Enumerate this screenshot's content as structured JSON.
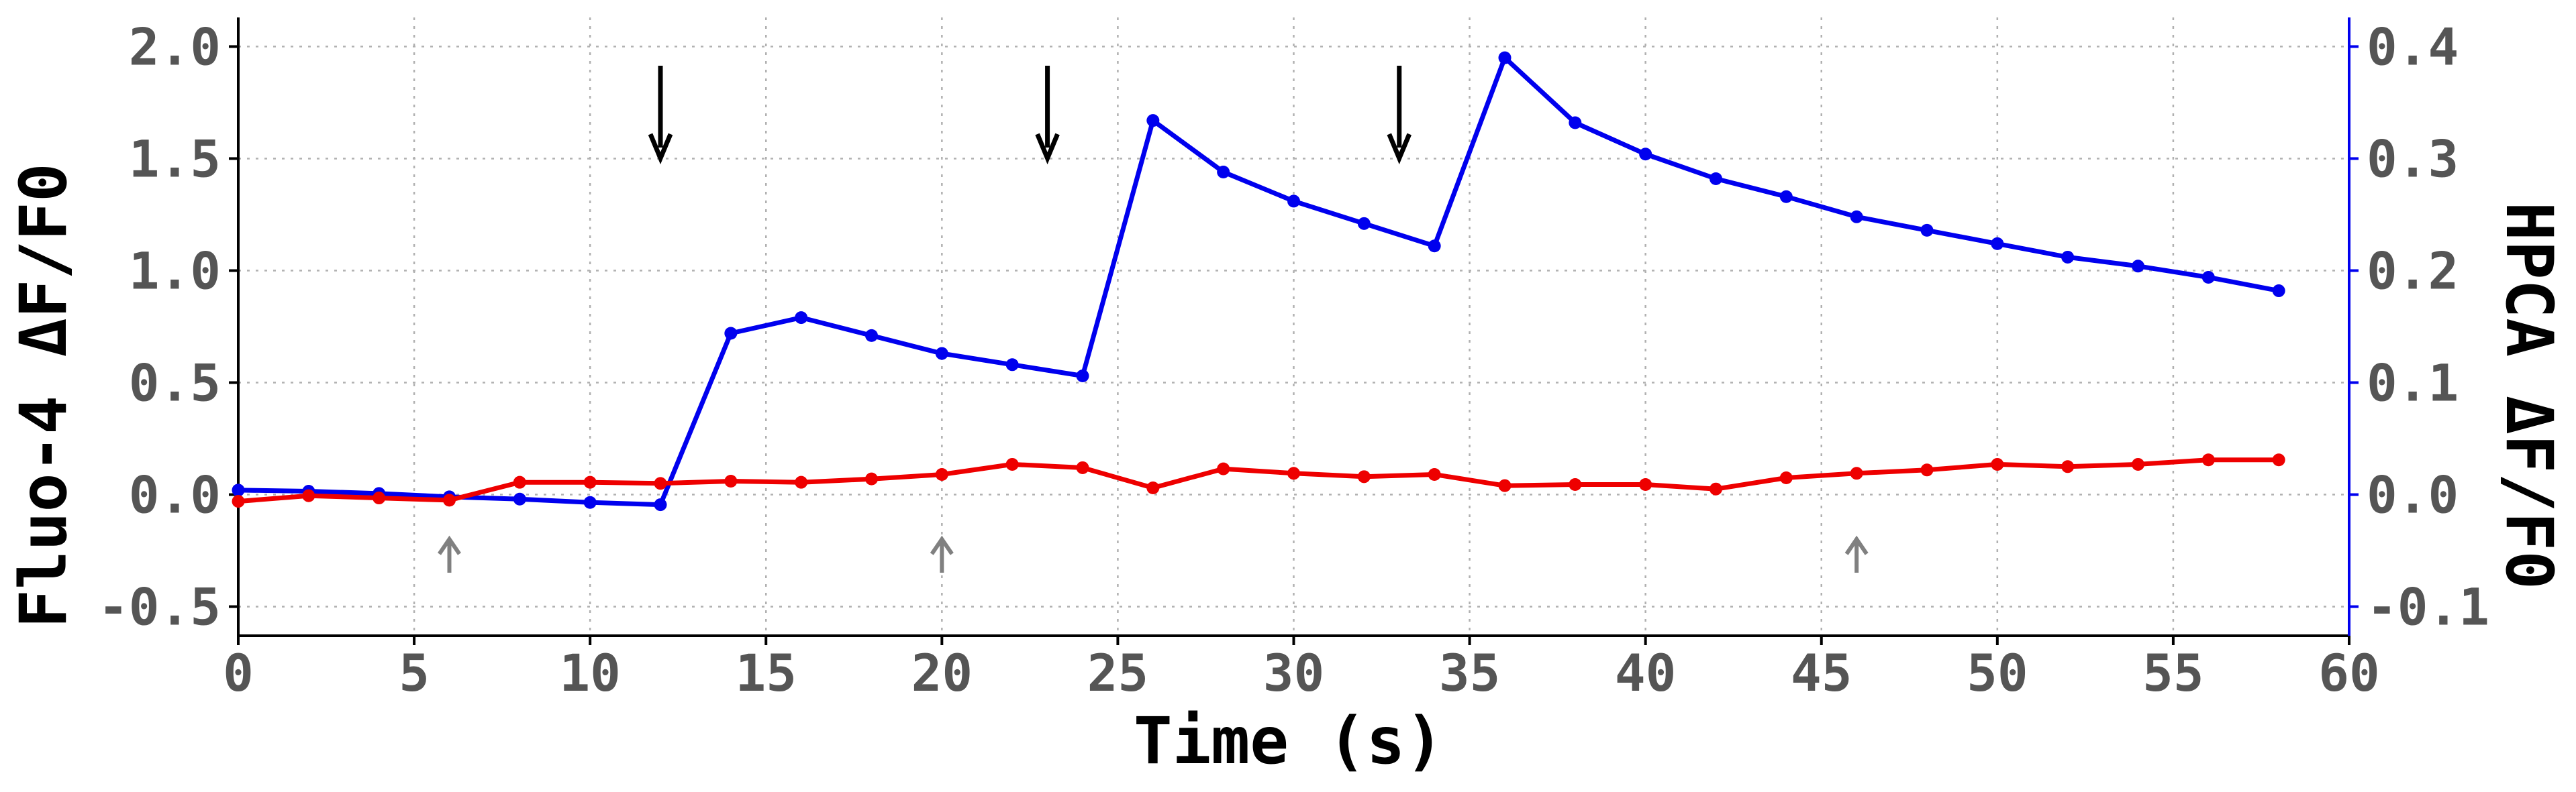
{
  "chart_data": {
    "type": "line",
    "title": "",
    "xlabel": "Time (s)",
    "ylabel_left": "Fluo-4 ΔF/F0",
    "ylabel_right": "HPCA ΔF/F0",
    "xlim": [
      0,
      60
    ],
    "ylim_left": [
      -0.63,
      2.13
    ],
    "ylim_right": [
      -0.126,
      0.426
    ],
    "x_ticks": [
      0,
      5,
      10,
      15,
      20,
      25,
      30,
      35,
      40,
      45,
      50,
      55,
      60
    ],
    "x_tick_labels": [
      "0",
      "5",
      "10",
      "15",
      "20",
      "25",
      "30",
      "35",
      "40",
      "45",
      "50",
      "55",
      "60"
    ],
    "y_left_ticks": [
      -0.5,
      0.0,
      0.5,
      1.0,
      1.5,
      2.0
    ],
    "y_left_tick_labels": [
      "-0.5",
      "0.0",
      "0.5",
      "1.0",
      "1.5",
      "2.0"
    ],
    "y_right_ticks": [
      -0.1,
      0.0,
      0.1,
      0.2,
      0.3,
      0.4
    ],
    "y_right_tick_labels": [
      "-0.1",
      "0.0",
      "0.1",
      "0.2",
      "0.3",
      "0.4"
    ],
    "grid": true,
    "colors": {
      "blue_series": "#0000ee",
      "red_series": "#ee0000",
      "right_axis": "#0000ee",
      "down_arrows": "#000000",
      "up_arrows": "#808080"
    },
    "series": [
      {
        "axis": "left",
        "color": "#0000ee",
        "x": [
          0,
          2,
          4,
          6,
          8,
          10,
          12,
          14,
          16,
          18,
          20,
          22,
          24,
          26,
          28,
          30,
          32,
          34,
          36,
          38,
          40,
          42,
          44,
          46,
          48,
          50,
          52,
          54,
          56,
          58
        ],
        "y": [
          0.02,
          0.015,
          0.005,
          -0.01,
          -0.02,
          -0.035,
          -0.045,
          0.72,
          0.79,
          0.71,
          0.63,
          0.58,
          0.53,
          1.67,
          1.44,
          1.31,
          1.21,
          1.11,
          1.95,
          1.66,
          1.52,
          1.41,
          1.33,
          1.24,
          1.18,
          1.12,
          1.06,
          1.02,
          0.97,
          0.91
        ]
      },
      {
        "axis": "right",
        "color": "#ee0000",
        "x": [
          0,
          2,
          4,
          6,
          8,
          10,
          12,
          14,
          16,
          18,
          20,
          22,
          24,
          26,
          28,
          30,
          32,
          34,
          36,
          38,
          40,
          42,
          44,
          46,
          48,
          50,
          52,
          54,
          56,
          58
        ],
        "y": [
          -0.006,
          -0.001,
          -0.003,
          -0.005,
          0.011,
          0.011,
          0.01,
          0.012,
          0.011,
          0.014,
          0.018,
          0.027,
          0.024,
          0.006,
          0.023,
          0.019,
          0.016,
          0.018,
          0.008,
          0.009,
          0.009,
          0.005,
          0.015,
          0.019,
          0.022,
          0.027,
          0.025,
          0.027,
          0.031,
          0.031
        ]
      }
    ],
    "annotations": {
      "down_arrows_x": [
        12,
        23,
        33
      ],
      "up_arrows_x": [
        6,
        20,
        46
      ]
    }
  }
}
